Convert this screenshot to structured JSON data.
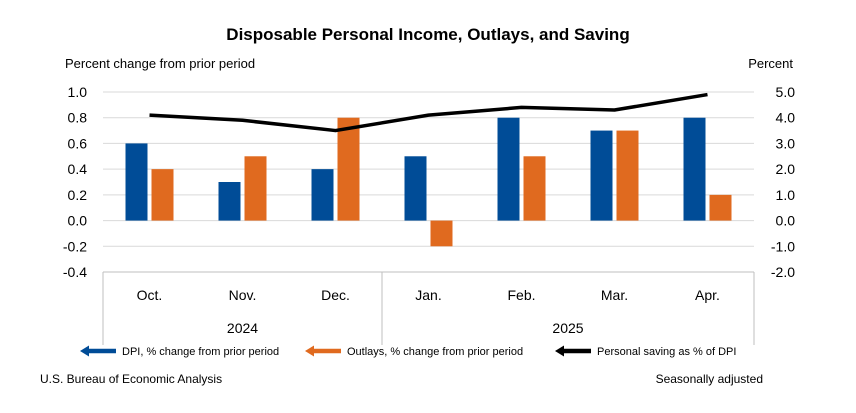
{
  "chart_data": {
    "type": "bar",
    "title": "Disposable Personal Income, Outlays, and Saving",
    "left_axis_label": "Percent change from prior period",
    "right_axis_label": "Percent",
    "left_ylim": [
      -0.4,
      1.0
    ],
    "left_ticks": [
      "1.0",
      "0.8",
      "0.6",
      "0.4",
      "0.2",
      "0.0",
      "-0.2",
      "-0.4"
    ],
    "right_ylim": [
      -2.0,
      5.0
    ],
    "right_ticks": [
      "5.0",
      "4.0",
      "3.0",
      "2.0",
      "1.0",
      "0.0",
      "-1.0",
      "-2.0"
    ],
    "categories": [
      "Oct.",
      "Nov.",
      "Dec.",
      "Jan.",
      "Feb.",
      "Mar.",
      "Apr."
    ],
    "year_groups": [
      {
        "label": "2024",
        "count": 3
      },
      {
        "label": "2025",
        "count": 4
      }
    ],
    "series": [
      {
        "name": "DPI, % change from prior period",
        "type": "bar",
        "axis": "left",
        "color": "#004C97",
        "values": [
          0.6,
          0.3,
          0.4,
          0.5,
          0.8,
          0.7,
          0.8
        ]
      },
      {
        "name": "Outlays, % change from prior period",
        "type": "bar",
        "axis": "left",
        "color": "#E06A1F",
        "values": [
          0.4,
          0.5,
          0.8,
          -0.2,
          0.5,
          0.7,
          0.2
        ]
      },
      {
        "name": "Personal saving as % of DPI",
        "type": "line",
        "axis": "right",
        "color": "#000000",
        "values": [
          4.1,
          3.9,
          3.5,
          4.1,
          4.4,
          4.3,
          4.9
        ]
      }
    ],
    "grid": true,
    "legend_position": "bottom"
  },
  "footer": {
    "source": "U.S. Bureau of Economic Analysis",
    "note": "Seasonally adjusted"
  }
}
